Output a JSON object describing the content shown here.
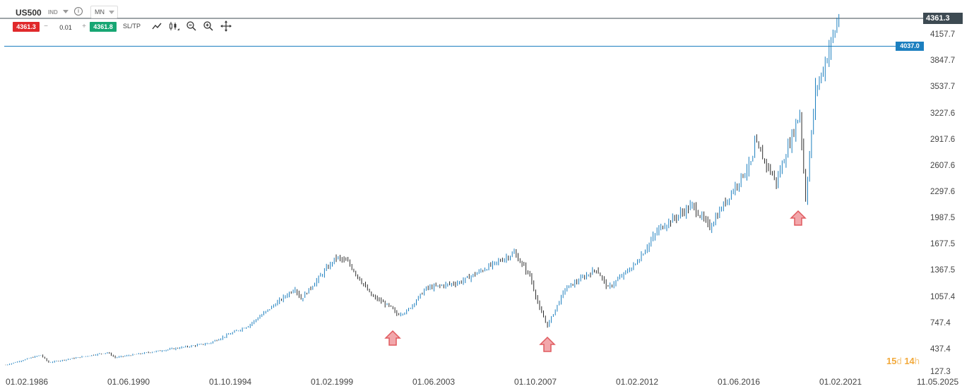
{
  "instrument": {
    "symbol": "US500",
    "type_badge": "IND",
    "timeframe": "MN",
    "info_icon": "info-icon"
  },
  "trade": {
    "sell_price": "4361.3",
    "quantity": "0.01",
    "buy_price": "4361.8",
    "sltp_label": "SL/TP"
  },
  "tools": [
    "line-chart-icon",
    "candlestick-icon",
    "zoom-out-icon",
    "zoom-in-icon",
    "crosshair-icon"
  ],
  "price_axis": {
    "last_price": "4361.3",
    "horizontal_level": "4037.0",
    "labels": [
      "4157.7",
      "3847.7",
      "3537.7",
      "3227.6",
      "2917.6",
      "2607.6",
      "2297.6",
      "1987.5",
      "1677.5",
      "1367.5",
      "1057.4",
      "747.4",
      "437.4",
      "127.3"
    ]
  },
  "time_axis": {
    "labels": [
      "01.02.1986",
      "01.06.1990",
      "01.10.1994",
      "01.02.1999",
      "01.06.2003",
      "01.10.2007",
      "01.02.2012",
      "01.06.2016",
      "01.02.2021",
      "11.05.2025"
    ]
  },
  "countdown": {
    "days": "15",
    "day_unit": "d",
    "hours": "14",
    "hour_unit": "h"
  },
  "annotations": [
    "up-arrow-icon",
    "up-arrow-icon",
    "up-arrow-icon"
  ],
  "colors": {
    "sell": "#e0292b",
    "buy": "#17a673",
    "bull_candle": "#1c7fbf",
    "bear_candle": "#2b2b2b",
    "level_line": "#1c7fbf",
    "arrow": "#e05a5f"
  },
  "chart_data": {
    "type": "candlestick",
    "interval": "monthly",
    "ylim": [
      127.3,
      4361.3
    ],
    "x_range": [
      "01.02.1986",
      "11.05.2025"
    ],
    "price_anchors": [
      [
        "1986-02",
        210
      ],
      [
        "1987-08",
        330
      ],
      [
        "1987-12",
        240
      ],
      [
        "1990-06",
        360
      ],
      [
        "1990-10",
        300
      ],
      [
        "1994-10",
        470
      ],
      [
        "1996-06",
        680
      ],
      [
        "1998-06",
        1130
      ],
      [
        "1998-09",
        1000
      ],
      [
        "2000-03",
        1500
      ],
      [
        "2000-09",
        1440
      ],
      [
        "2001-09",
        1040
      ],
      [
        "2002-07",
        900
      ],
      [
        "2002-10",
        815
      ],
      [
        "2003-03",
        850
      ],
      [
        "2004-01",
        1130
      ],
      [
        "2005-06",
        1200
      ],
      [
        "2007-10",
        1550
      ],
      [
        "2008-06",
        1280
      ],
      [
        "2008-11",
        880
      ],
      [
        "2009-03",
        680
      ],
      [
        "2009-12",
        1120
      ],
      [
        "2011-04",
        1360
      ],
      [
        "2011-10",
        1130
      ],
      [
        "2012-12",
        1420
      ],
      [
        "2013-12",
        1840
      ],
      [
        "2015-05",
        2120
      ],
      [
        "2016-02",
        1860
      ],
      [
        "2016-12",
        2240
      ],
      [
        "2017-12",
        2670
      ],
      [
        "2018-01",
        2870
      ],
      [
        "2018-12",
        2400
      ],
      [
        "2019-12",
        3230
      ],
      [
        "2020-03",
        2200
      ],
      [
        "2020-08",
        3500
      ],
      [
        "2020-12",
        3750
      ],
      [
        "2021-03",
        4000
      ],
      [
        "2021-08",
        4360
      ]
    ],
    "horizontal_line": 4037.0,
    "last_price": 4361.3
  }
}
